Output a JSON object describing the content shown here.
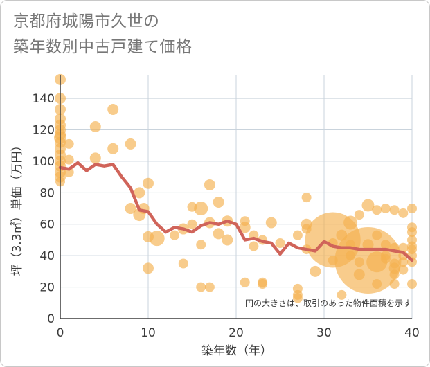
{
  "title_lines": [
    "京都府城陽市久世の",
    "築年数別中古戸建て価格"
  ],
  "colors": {
    "bubble": "#f5b14e",
    "line": "#d0645a",
    "grid": "#c9d3dc",
    "axis": "#3c3c3c"
  },
  "chart_data": {
    "type": "scatter",
    "title": "京都府城陽市久世の築年数別中古戸建て価格",
    "xlabel": "築年数（年）",
    "ylabel": "坪（3.3㎡）単価（万円）",
    "xlim": [
      0,
      40
    ],
    "ylim": [
      0,
      155
    ],
    "xticks": [
      0,
      10,
      20,
      30,
      40
    ],
    "yticks": [
      0,
      20,
      40,
      60,
      80,
      100,
      120,
      140
    ],
    "grid": true,
    "note": "円の大きさは、取引のあった物件面積を示す",
    "bubbles": [
      {
        "x": 0,
        "y": 152,
        "r": 8
      },
      {
        "x": 0,
        "y": 140,
        "r": 8
      },
      {
        "x": 0,
        "y": 133,
        "r": 8
      },
      {
        "x": 0,
        "y": 127,
        "r": 8
      },
      {
        "x": 0,
        "y": 123,
        "r": 8
      },
      {
        "x": 0,
        "y": 120,
        "r": 8
      },
      {
        "x": 0,
        "y": 117,
        "r": 8
      },
      {
        "x": 0,
        "y": 115,
        "r": 9
      },
      {
        "x": 0,
        "y": 112,
        "r": 8
      },
      {
        "x": 0,
        "y": 108,
        "r": 8
      },
      {
        "x": 0,
        "y": 104,
        "r": 8
      },
      {
        "x": 0,
        "y": 100,
        "r": 8
      },
      {
        "x": 0,
        "y": 97,
        "r": 8
      },
      {
        "x": 0,
        "y": 93,
        "r": 8
      },
      {
        "x": 0,
        "y": 90,
        "r": 8
      },
      {
        "x": 0,
        "y": 87,
        "r": 7
      },
      {
        "x": 1,
        "y": 111,
        "r": 7
      },
      {
        "x": 1,
        "y": 101,
        "r": 7
      },
      {
        "x": 1,
        "y": 93,
        "r": 7
      },
      {
        "x": 4,
        "y": 122,
        "r": 8
      },
      {
        "x": 4,
        "y": 102,
        "r": 8
      },
      {
        "x": 6,
        "y": 133,
        "r": 8
      },
      {
        "x": 6,
        "y": 108,
        "r": 8
      },
      {
        "x": 8,
        "y": 111,
        "r": 8
      },
      {
        "x": 8,
        "y": 70,
        "r": 8
      },
      {
        "x": 9,
        "y": 80,
        "r": 8
      },
      {
        "x": 9,
        "y": 66,
        "r": 9
      },
      {
        "x": 9.5,
        "y": 70,
        "r": 8
      },
      {
        "x": 10,
        "y": 86,
        "r": 8
      },
      {
        "x": 10,
        "y": 52,
        "r": 8
      },
      {
        "x": 10,
        "y": 32,
        "r": 8
      },
      {
        "x": 11,
        "y": 51,
        "r": 11
      },
      {
        "x": 13,
        "y": 53,
        "r": 7
      },
      {
        "x": 14,
        "y": 57,
        "r": 8
      },
      {
        "x": 14,
        "y": 35,
        "r": 7
      },
      {
        "x": 15,
        "y": 71,
        "r": 7
      },
      {
        "x": 15,
        "y": 60,
        "r": 7
      },
      {
        "x": 16,
        "y": 70,
        "r": 10
      },
      {
        "x": 16,
        "y": 47,
        "r": 7
      },
      {
        "x": 16,
        "y": 20,
        "r": 7
      },
      {
        "x": 17,
        "y": 85,
        "r": 8
      },
      {
        "x": 17,
        "y": 61,
        "r": 8
      },
      {
        "x": 17,
        "y": 20,
        "r": 7
      },
      {
        "x": 18,
        "y": 74,
        "r": 8
      },
      {
        "x": 18,
        "y": 54,
        "r": 8
      },
      {
        "x": 19,
        "y": 62,
        "r": 8
      },
      {
        "x": 19,
        "y": 50,
        "r": 8
      },
      {
        "x": 21,
        "y": 62,
        "r": 7
      },
      {
        "x": 21,
        "y": 58,
        "r": 8
      },
      {
        "x": 21,
        "y": 23,
        "r": 7
      },
      {
        "x": 22,
        "y": 53,
        "r": 7
      },
      {
        "x": 22,
        "y": 46,
        "r": 7
      },
      {
        "x": 23,
        "y": 50,
        "r": 7
      },
      {
        "x": 23,
        "y": 23,
        "r": 7
      },
      {
        "x": 23,
        "y": 22,
        "r": 7
      },
      {
        "x": 24,
        "y": 61,
        "r": 8
      },
      {
        "x": 25,
        "y": 48,
        "r": 7
      },
      {
        "x": 27,
        "y": 53,
        "r": 7
      },
      {
        "x": 27,
        "y": 19,
        "r": 7
      },
      {
        "x": 27,
        "y": 15,
        "r": 7
      },
      {
        "x": 27,
        "y": 13,
        "r": 7
      },
      {
        "x": 28,
        "y": 77,
        "r": 7
      },
      {
        "x": 28,
        "y": 60,
        "r": 8
      },
      {
        "x": 28,
        "y": 57,
        "r": 7
      },
      {
        "x": 28,
        "y": 44,
        "r": 7
      },
      {
        "x": 29,
        "y": 30,
        "r": 8
      },
      {
        "x": 31,
        "y": 50,
        "r": 40
      },
      {
        "x": 31,
        "y": 48,
        "r": 7
      },
      {
        "x": 31,
        "y": 37,
        "r": 7
      },
      {
        "x": 32,
        "y": 53,
        "r": 8
      },
      {
        "x": 32,
        "y": 15,
        "r": 7
      },
      {
        "x": 33,
        "y": 61,
        "r": 10
      },
      {
        "x": 33,
        "y": 47,
        "r": 7
      },
      {
        "x": 33,
        "y": 40,
        "r": 7
      },
      {
        "x": 34,
        "y": 66,
        "r": 7
      },
      {
        "x": 34,
        "y": 36,
        "r": 7
      },
      {
        "x": 34,
        "y": 28,
        "r": 8
      },
      {
        "x": 35,
        "y": 72,
        "r": 9
      },
      {
        "x": 35,
        "y": 37,
        "r": 48
      },
      {
        "x": 35,
        "y": 47,
        "r": 8
      },
      {
        "x": 36,
        "y": 69,
        "r": 7
      },
      {
        "x": 36,
        "y": 53,
        "r": 7
      },
      {
        "x": 36,
        "y": 36,
        "r": 15
      },
      {
        "x": 36,
        "y": 22,
        "r": 7
      },
      {
        "x": 37,
        "y": 70,
        "r": 7
      },
      {
        "x": 37,
        "y": 47,
        "r": 7
      },
      {
        "x": 37,
        "y": 40,
        "r": 7
      },
      {
        "x": 37,
        "y": 38,
        "r": 7
      },
      {
        "x": 38,
        "y": 69,
        "r": 7
      },
      {
        "x": 38,
        "y": 45,
        "r": 7
      },
      {
        "x": 38,
        "y": 35,
        "r": 7
      },
      {
        "x": 38,
        "y": 32,
        "r": 8
      },
      {
        "x": 38,
        "y": 28,
        "r": 7
      },
      {
        "x": 38,
        "y": 22,
        "r": 7
      },
      {
        "x": 39,
        "y": 67,
        "r": 7
      },
      {
        "x": 39,
        "y": 45,
        "r": 7
      },
      {
        "x": 39,
        "y": 40,
        "r": 7
      },
      {
        "x": 39,
        "y": 36,
        "r": 7
      },
      {
        "x": 39,
        "y": 31,
        "r": 7
      },
      {
        "x": 40,
        "y": 70,
        "r": 7
      },
      {
        "x": 40,
        "y": 58,
        "r": 7
      },
      {
        "x": 40,
        "y": 55,
        "r": 7
      },
      {
        "x": 40,
        "y": 50,
        "r": 7
      },
      {
        "x": 40,
        "y": 46,
        "r": 7
      },
      {
        "x": 40,
        "y": 44,
        "r": 7
      },
      {
        "x": 40,
        "y": 40,
        "r": 7
      },
      {
        "x": 40,
        "y": 36,
        "r": 7
      },
      {
        "x": 40,
        "y": 22,
        "r": 7
      }
    ],
    "series": [
      {
        "x": [
          0,
          1,
          2,
          3,
          4,
          5,
          6,
          7,
          8,
          9,
          10,
          11,
          12,
          13,
          14,
          15,
          16,
          17,
          18,
          19,
          20,
          21,
          22,
          23,
          24,
          25,
          26,
          27,
          28,
          29,
          30,
          31,
          32,
          33,
          34,
          35,
          36,
          37,
          38,
          39,
          40
        ],
        "y": [
          96,
          95,
          99,
          94,
          98,
          97,
          98,
          90,
          83,
          69,
          68,
          60,
          55,
          58,
          57,
          55,
          59,
          61,
          60,
          62,
          60,
          50,
          51,
          49,
          48,
          41,
          48,
          45,
          44,
          43,
          49,
          46,
          45,
          45,
          44,
          44,
          44,
          44,
          43,
          42,
          37
        ]
      }
    ]
  }
}
